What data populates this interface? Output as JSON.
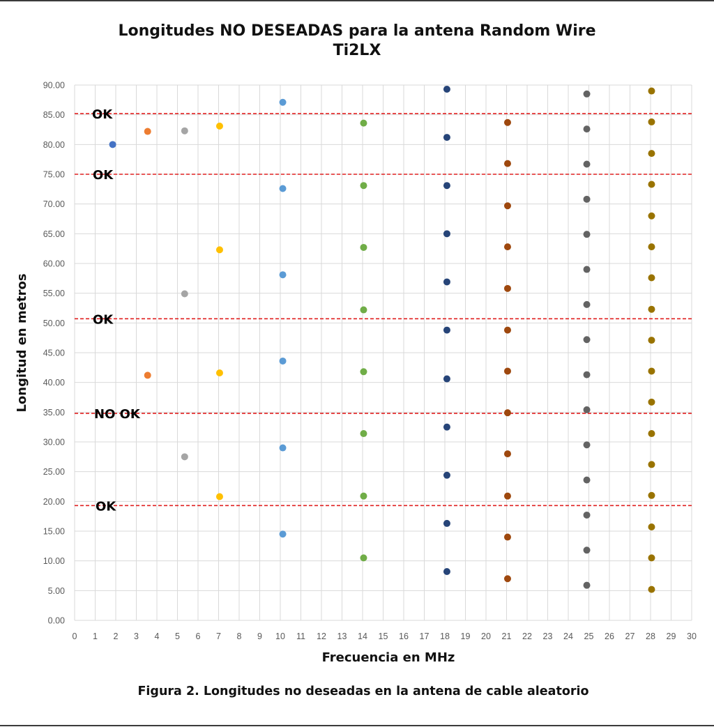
{
  "figure_caption": "Figura 2. Longitudes no deseadas en la antena de cable aleatorio",
  "chart_data": {
    "type": "scatter",
    "title": "Longitudes NO DESEADAS para la antena Random Wire",
    "subtitle": "Ti2LX",
    "xlabel": "Frecuencia en MHz",
    "ylabel": "Longitud en metros",
    "xlim": [
      0,
      30
    ],
    "ylim": [
      0,
      90
    ],
    "grid": true,
    "x_ticks": [
      "0",
      "1",
      "2",
      "3",
      "4",
      "5",
      "6",
      "7",
      "8",
      "9",
      "10",
      "11",
      "12",
      "13",
      "14",
      "15",
      "16",
      "17",
      "18",
      "19",
      "20",
      "21",
      "22",
      "23",
      "24",
      "25",
      "26",
      "27",
      "28",
      "29",
      "30"
    ],
    "y_ticks": [
      "0.00",
      "5.00",
      "10.00",
      "15.00",
      "20.00",
      "25.00",
      "30.00",
      "35.00",
      "40.00",
      "45.00",
      "50.00",
      "55.00",
      "60.00",
      "65.00",
      "70.00",
      "75.00",
      "80.00",
      "85.00",
      "90.00"
    ],
    "series": [
      {
        "color": "#4472C4",
        "points": [
          [
            1.85,
            80.0
          ]
        ]
      },
      {
        "color": "#ED7D31",
        "points": [
          [
            3.55,
            82.2
          ],
          [
            3.55,
            41.2
          ]
        ]
      },
      {
        "color": "#A5A5A5",
        "points": [
          [
            5.35,
            82.3
          ],
          [
            5.35,
            54.9
          ],
          [
            5.35,
            27.5
          ]
        ]
      },
      {
        "color": "#FFC000",
        "points": [
          [
            7.05,
            83.1
          ],
          [
            7.05,
            62.3
          ],
          [
            7.05,
            41.6
          ],
          [
            7.05,
            20.8
          ]
        ]
      },
      {
        "color": "#5B9BD5",
        "points": [
          [
            10.12,
            87.1
          ],
          [
            10.12,
            72.6
          ],
          [
            10.12,
            58.1
          ],
          [
            10.12,
            43.6
          ],
          [
            10.12,
            29.0
          ],
          [
            10.12,
            14.5
          ]
        ]
      },
      {
        "color": "#70AD47",
        "points": [
          [
            14.05,
            83.6
          ],
          [
            14.05,
            73.1
          ],
          [
            14.05,
            62.7
          ],
          [
            14.05,
            52.2
          ],
          [
            14.05,
            41.8
          ],
          [
            14.05,
            31.4
          ],
          [
            14.05,
            20.9
          ],
          [
            14.05,
            10.5
          ]
        ]
      },
      {
        "color": "#264478",
        "points": [
          [
            18.1,
            89.3
          ],
          [
            18.1,
            81.2
          ],
          [
            18.1,
            73.1
          ],
          [
            18.1,
            65.0
          ],
          [
            18.1,
            56.9
          ],
          [
            18.1,
            48.8
          ],
          [
            18.1,
            40.6
          ],
          [
            18.1,
            32.5
          ],
          [
            18.1,
            24.4
          ],
          [
            18.1,
            16.3
          ],
          [
            18.1,
            8.2
          ]
        ]
      },
      {
        "color": "#9E480E",
        "points": [
          [
            21.05,
            83.7
          ],
          [
            21.05,
            76.8
          ],
          [
            21.05,
            69.7
          ],
          [
            21.05,
            62.8
          ],
          [
            21.05,
            55.8
          ],
          [
            21.05,
            48.8
          ],
          [
            21.05,
            41.9
          ],
          [
            21.05,
            34.9
          ],
          [
            21.05,
            28.0
          ],
          [
            21.05,
            20.9
          ],
          [
            21.05,
            14.0
          ],
          [
            21.05,
            7.0
          ]
        ]
      },
      {
        "color": "#636363",
        "points": [
          [
            24.9,
            88.5
          ],
          [
            24.9,
            82.6
          ],
          [
            24.9,
            76.7
          ],
          [
            24.9,
            70.8
          ],
          [
            24.9,
            64.9
          ],
          [
            24.9,
            59.0
          ],
          [
            24.9,
            53.1
          ],
          [
            24.9,
            47.2
          ],
          [
            24.9,
            41.3
          ],
          [
            24.9,
            35.4
          ],
          [
            24.9,
            29.5
          ],
          [
            24.9,
            23.6
          ],
          [
            24.9,
            17.7
          ],
          [
            24.9,
            11.8
          ],
          [
            24.9,
            5.9
          ]
        ]
      },
      {
        "color": "#997300",
        "points": [
          [
            28.05,
            89.0
          ],
          [
            28.05,
            83.8
          ],
          [
            28.05,
            78.5
          ],
          [
            28.05,
            73.3
          ],
          [
            28.05,
            68.0
          ],
          [
            28.05,
            62.8
          ],
          [
            28.05,
            57.6
          ],
          [
            28.05,
            52.3
          ],
          [
            28.05,
            47.1
          ],
          [
            28.05,
            41.9
          ],
          [
            28.05,
            36.7
          ],
          [
            28.05,
            31.4
          ],
          [
            28.05,
            26.2
          ],
          [
            28.05,
            21.0
          ],
          [
            28.05,
            15.7
          ],
          [
            28.05,
            10.5
          ],
          [
            28.05,
            5.2
          ]
        ]
      }
    ],
    "reference_lines": [
      {
        "y": 85.2,
        "label": "OK",
        "color": "#E02020"
      },
      {
        "y": 75.0,
        "label": "OK",
        "color": "#E02020"
      },
      {
        "y": 50.7,
        "label": "OK",
        "color": "#E02020"
      },
      {
        "y": 34.8,
        "label": "NO OK",
        "color": "#E02020"
      },
      {
        "y": 19.3,
        "label": "OK",
        "color": "#E02020"
      }
    ]
  }
}
